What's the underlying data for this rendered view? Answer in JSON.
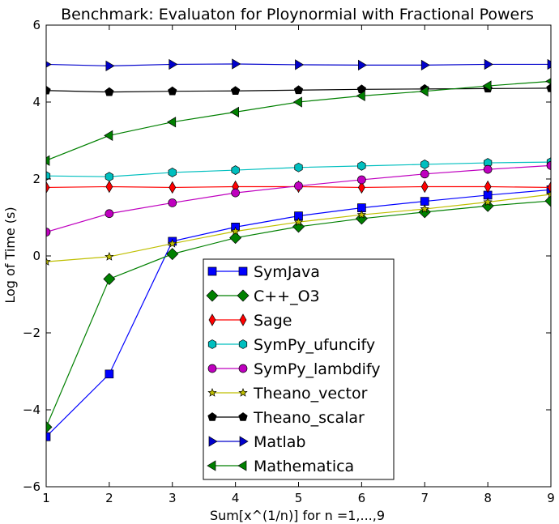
{
  "chart_data": {
    "type": "line",
    "title": "Benchmark: Evaluaton for Ploynormial with Fractional Powers",
    "xlabel": "Sum[x^(1/n)] for n =1,...,9",
    "ylabel": "Log of Time (s)",
    "xlim": [
      1,
      9
    ],
    "ylim": [
      -6,
      6
    ],
    "x_ticks": [
      1,
      2,
      3,
      4,
      5,
      6,
      7,
      8,
      9
    ],
    "y_ticks": [
      -6,
      -4,
      -2,
      0,
      2,
      4,
      6
    ],
    "y_tick_labels": [
      "−6",
      "−4",
      "−2",
      "0",
      "2",
      "4",
      "6"
    ],
    "grid": false,
    "legend_position": "lower-center",
    "x": [
      1,
      2,
      3,
      4,
      5,
      6,
      7,
      8,
      9
    ],
    "series": [
      {
        "name": "SymJava",
        "color": "#0000ff",
        "marker": "square",
        "values": [
          -4.7,
          -3.07,
          0.38,
          0.75,
          1.04,
          1.25,
          1.42,
          1.58,
          1.72
        ]
      },
      {
        "name": "C++_O3",
        "color": "#008000",
        "marker": "diamond",
        "values": [
          -4.45,
          -0.6,
          0.05,
          0.47,
          0.76,
          0.97,
          1.14,
          1.3,
          1.43
        ]
      },
      {
        "name": "Sage",
        "color": "#ff0000",
        "marker": "thin-diamond",
        "values": [
          1.78,
          1.8,
          1.78,
          1.8,
          1.8,
          1.78,
          1.8,
          1.8,
          1.78
        ]
      },
      {
        "name": "SymPy_ufuncify",
        "color": "#00bfbf",
        "marker": "hexagon",
        "values": [
          2.08,
          2.06,
          2.17,
          2.23,
          2.3,
          2.34,
          2.38,
          2.42,
          2.44
        ]
      },
      {
        "name": "SymPy_lambdify",
        "color": "#bf00bf",
        "marker": "circle",
        "values": [
          0.62,
          1.1,
          1.38,
          1.64,
          1.82,
          1.98,
          2.13,
          2.25,
          2.35
        ]
      },
      {
        "name": "Theano_vector",
        "color": "#bfbf00",
        "marker": "star",
        "values": [
          -0.15,
          -0.02,
          0.32,
          0.64,
          0.88,
          1.07,
          1.22,
          1.4,
          1.6
        ]
      },
      {
        "name": "Theano_scalar",
        "color": "#000000",
        "marker": "pentagon",
        "values": [
          4.3,
          4.26,
          4.28,
          4.29,
          4.31,
          4.33,
          4.34,
          4.35,
          4.36
        ]
      },
      {
        "name": "Matlab",
        "color": "#0000cc",
        "marker": "triangle-right",
        "values": [
          4.98,
          4.94,
          4.98,
          4.99,
          4.97,
          4.96,
          4.96,
          4.98,
          4.98
        ]
      },
      {
        "name": "Mathematica",
        "color": "#008000",
        "marker": "triangle-left",
        "values": [
          2.48,
          3.13,
          3.48,
          3.74,
          4.0,
          4.16,
          4.28,
          4.42,
          4.54
        ]
      }
    ]
  }
}
